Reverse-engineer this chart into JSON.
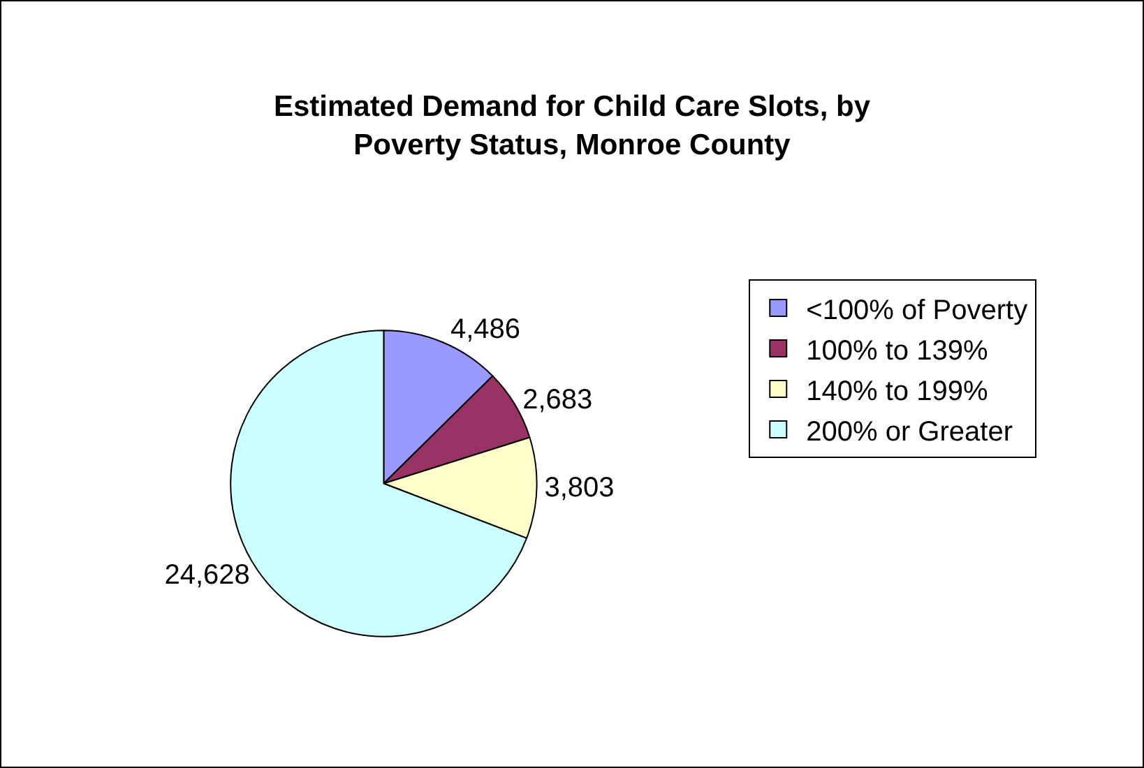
{
  "chart_data": {
    "type": "pie",
    "title": "Estimated Demand for Child Care Slots, by Poverty Status, Monroe County",
    "categories": [
      "<100% of Poverty",
      "100% to 139%",
      "140% to 199%",
      "200% or Greater"
    ],
    "values": [
      4486,
      2683,
      3803,
      24628
    ],
    "colors": [
      "#9999ff",
      "#993366",
      "#ffffcc",
      "#ccffff"
    ],
    "value_labels": [
      "4,486",
      "2,683",
      "3,803",
      "24,628"
    ],
    "legend": "right"
  }
}
